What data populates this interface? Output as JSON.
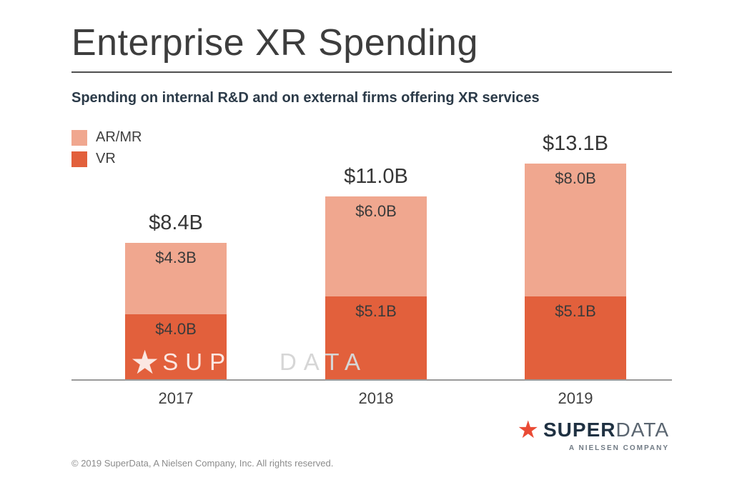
{
  "chart_data": {
    "type": "bar",
    "stacked": true,
    "title": "Enterprise XR Spending",
    "subtitle": "Spending on internal R&D and on external firms offering XR services",
    "categories": [
      "2017",
      "2018",
      "2019"
    ],
    "series": [
      {
        "name": "VR",
        "color": "#e2603c",
        "values": [
          4.0,
          5.1,
          5.1
        ],
        "data_labels": [
          "$4.0B",
          "$5.1B",
          "$5.1B"
        ]
      },
      {
        "name": "AR/MR",
        "color": "#f0a78f",
        "values": [
          4.3,
          6.0,
          8.0
        ],
        "data_labels": [
          "$4.3B",
          "$6.0B",
          "$8.0B"
        ]
      }
    ],
    "totals": [
      "$8.4B",
      "$11.0B",
      "$13.1B"
    ],
    "xlabel": "",
    "ylabel": "",
    "ylim": [
      0,
      14
    ],
    "grid": false,
    "legend_position": "top-left"
  },
  "watermark": {
    "star": "★",
    "super": "SUPER",
    "data": "DATA"
  },
  "footer": {
    "copyright": "© 2019 SuperData, A Nielsen Company, Inc. All rights reserved.",
    "logo": {
      "star": "★",
      "super": "SUPER",
      "data": "DATA",
      "tagline": "A NIELSEN COMPANY"
    }
  }
}
